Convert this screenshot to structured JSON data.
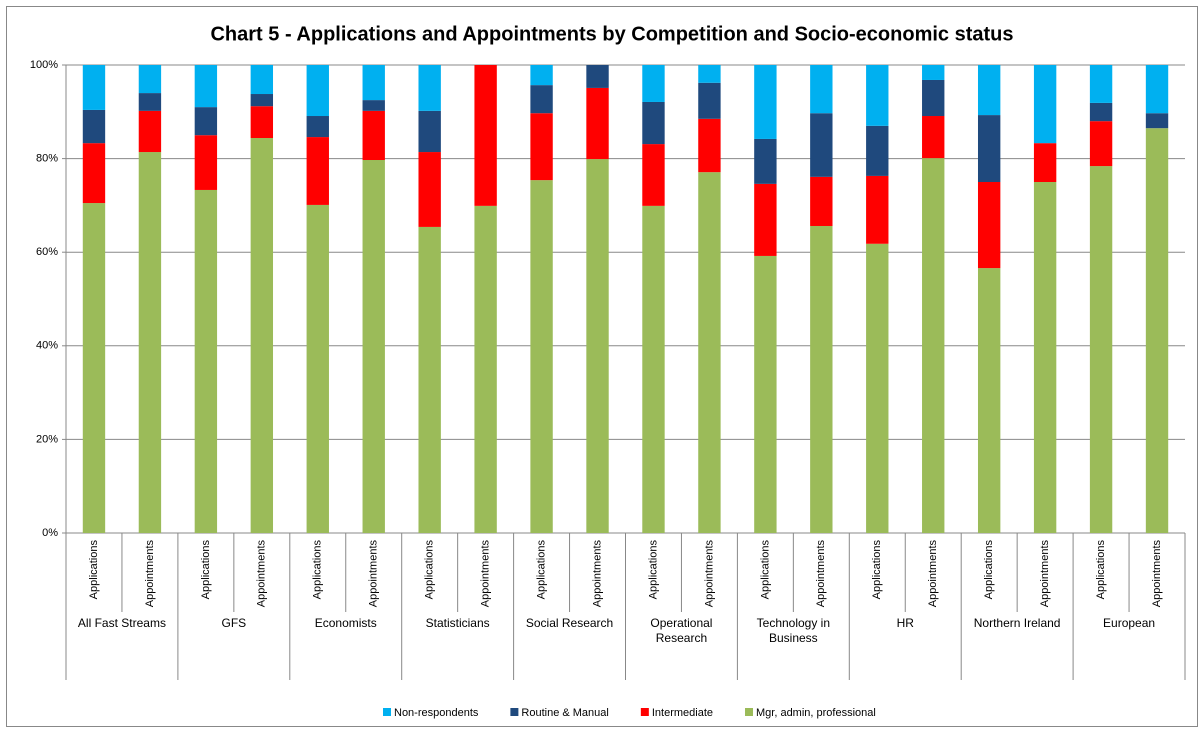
{
  "chart_data": {
    "type": "stacked_bar",
    "title": "Chart 5 - Applications and Appointments by Competition and Socio-economic status",
    "categories": [
      "Applications",
      "Appointments",
      "Applications",
      "Appointments",
      "Applications",
      "Appointments",
      "Applications",
      "Appointments",
      "Applications",
      "Appointments",
      "Applications",
      "Appointments",
      "Applications",
      "Appointments",
      "Applications",
      "Appointments",
      "Applications",
      "Appointments",
      "Applications",
      "Appointments"
    ],
    "groups": [
      "All Fast Streams",
      "GFS",
      "Economists",
      "Statisticians",
      "Social Research",
      "Operational Research",
      "Technology in Business",
      "HR",
      "Northern Ireland",
      "European"
    ],
    "series": [
      {
        "name": "Mgr, admin, professional",
        "color": "#9bbb59",
        "values": [
          70.5,
          81.4,
          73.3,
          84.4,
          70.1,
          79.7,
          65.4,
          69.9,
          75.4,
          79.9,
          69.9,
          77.1,
          59.2,
          65.6,
          61.8,
          80.1,
          56.6,
          75.0,
          78.4,
          86.5
        ]
      },
      {
        "name": "Intermediate",
        "color": "#ff0000",
        "values": [
          12.8,
          8.8,
          11.7,
          6.8,
          14.5,
          10.5,
          16.0,
          30.1,
          14.3,
          15.2,
          13.2,
          11.4,
          15.4,
          10.5,
          14.5,
          9.0,
          18.4,
          8.3,
          9.6,
          0
        ]
      },
      {
        "name": "Routine & Manual",
        "color": "#1f497d",
        "values": [
          7.1,
          3.8,
          6.0,
          2.6,
          4.5,
          2.3,
          8.8,
          0,
          6.0,
          4.9,
          9.0,
          7.7,
          9.6,
          13.6,
          10.7,
          7.7,
          14.3,
          0,
          3.9,
          3.2
        ]
      },
      {
        "name": "Non-respondents",
        "color": "#00b0f0",
        "values": [
          9.6,
          6.0,
          9.0,
          6.2,
          10.9,
          7.5,
          9.8,
          0,
          4.3,
          0,
          7.9,
          3.8,
          15.8,
          10.3,
          13.0,
          3.2,
          10.7,
          16.7,
          8.1,
          10.3
        ]
      }
    ],
    "ylim": [
      0,
      100
    ],
    "yticks": [
      {
        "value": 0,
        "label": "0%"
      },
      {
        "value": 20,
        "label": "20%"
      },
      {
        "value": 40,
        "label": "40%"
      },
      {
        "value": 60,
        "label": "60%"
      },
      {
        "value": 80,
        "label": "80%"
      },
      {
        "value": 100,
        "label": "100%"
      }
    ],
    "grid": true,
    "legend": "bottom"
  }
}
